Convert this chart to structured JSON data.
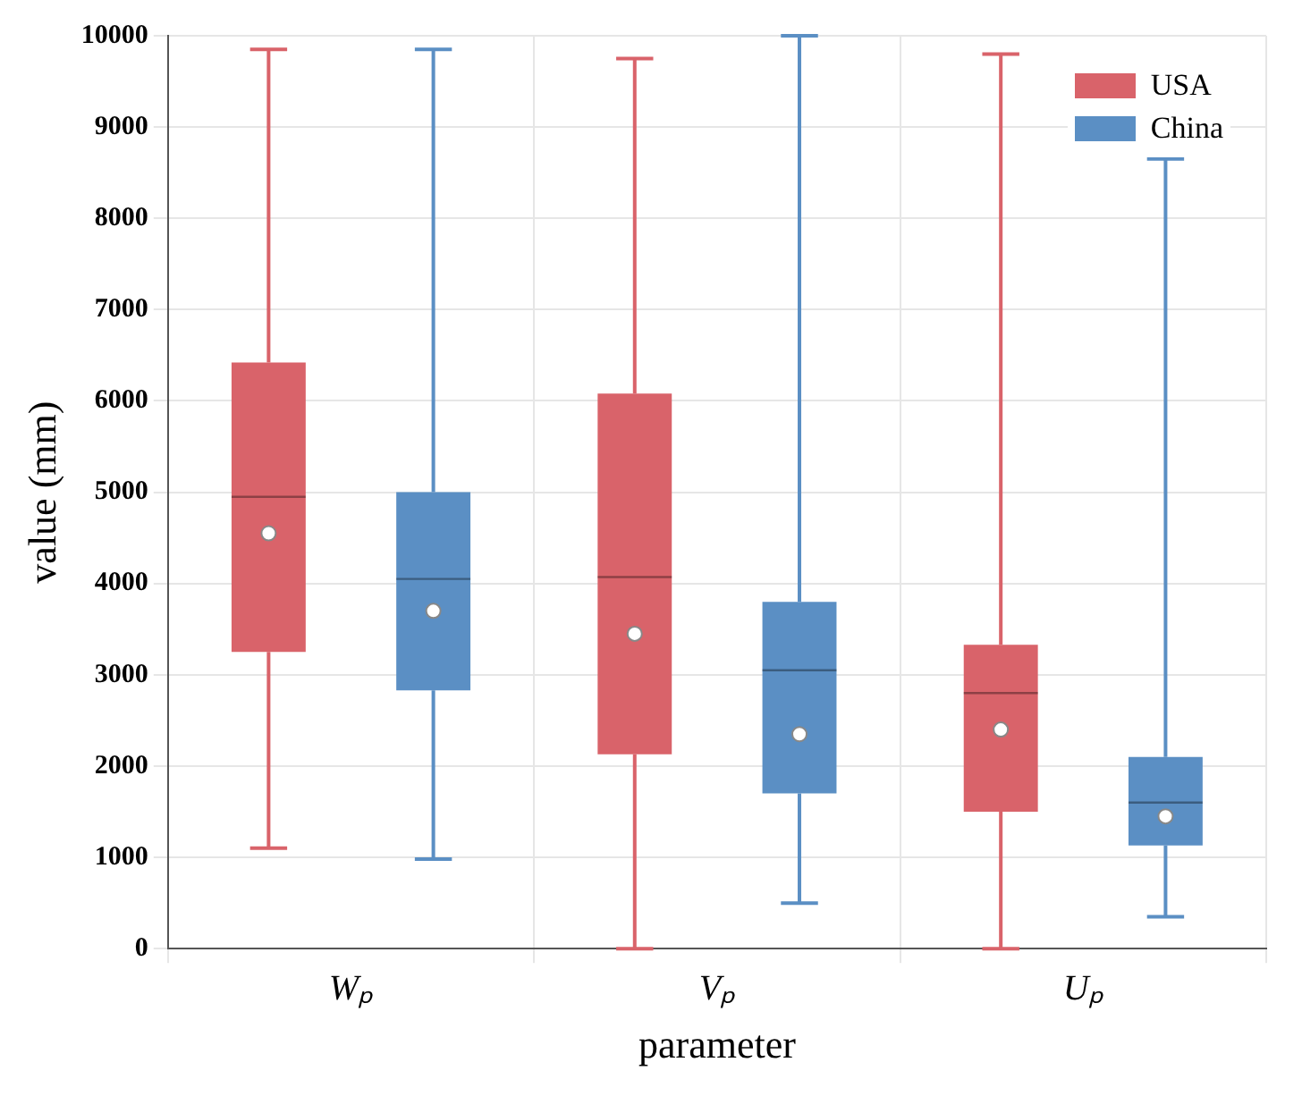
{
  "chart_data": {
    "type": "box",
    "xlabel": "parameter",
    "ylabel": "value (mm)",
    "categories": [
      "Wₚ",
      "Vₚ",
      "Uₚ"
    ],
    "ylim": [
      0,
      10000
    ],
    "yticks": [
      0,
      1000,
      2000,
      3000,
      4000,
      5000,
      6000,
      7000,
      8000,
      9000,
      10000
    ],
    "grid": true,
    "legend": "top right",
    "series": [
      {
        "name": "USA",
        "color": "#d9636a",
        "boxes": [
          {
            "low": 1100,
            "q1": 3250,
            "median": 4950,
            "q3": 6420,
            "high": 9850,
            "mean": 4550
          },
          {
            "low": 0,
            "q1": 2130,
            "median": 4070,
            "q3": 6080,
            "high": 9750,
            "mean": 3450
          },
          {
            "low": 0,
            "q1": 1500,
            "median": 2800,
            "q3": 3330,
            "high": 9800,
            "mean": 2400
          }
        ]
      },
      {
        "name": "China",
        "color": "#5b8fc4",
        "boxes": [
          {
            "low": 980,
            "q1": 2830,
            "median": 4050,
            "q3": 5000,
            "high": 9850,
            "mean": 3700
          },
          {
            "low": 500,
            "q1": 1700,
            "median": 3050,
            "q3": 3800,
            "high": 10000,
            "mean": 2350
          },
          {
            "low": 350,
            "q1": 1130,
            "median": 1600,
            "q3": 2100,
            "high": 8650,
            "mean": 1450
          }
        ]
      }
    ]
  }
}
